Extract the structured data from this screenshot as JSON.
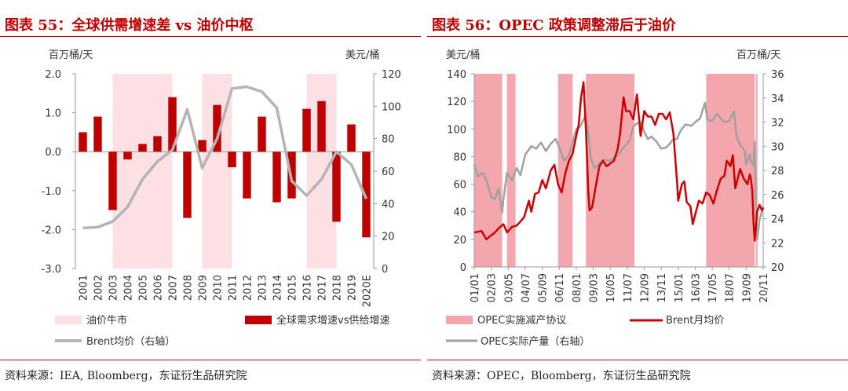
{
  "charts": {
    "c55": {
      "title": "图表 55：全球供需增速差 vs 油价中枢",
      "source": "资料来源：IEA, Bloomberg，东证衍生品研究院",
      "colors": {
        "band": "#fde0e4",
        "bar": "#c00000",
        "line": "#b4b4b4"
      }
    },
    "c56": {
      "title": "图表 56：OPEC 政策调整滞后于油价",
      "source": "资料来源：OPEC，Bloomberg，东证衍生品研究院",
      "colors": {
        "band": "#f4a6ad",
        "line_red": "#d00000",
        "line_grey": "#a0a0a0"
      }
    }
  },
  "chart_data": [
    {
      "type": "bar",
      "left_unit": "百万桶/天",
      "right_unit": "美元/桶",
      "categories": [
        "2001",
        "2002",
        "2003",
        "2004",
        "2005",
        "2006",
        "2007",
        "2008",
        "2009",
        "2010",
        "2011",
        "2012",
        "2013",
        "2014",
        "2015",
        "2016",
        "2017",
        "2018",
        "2019",
        "2020E"
      ],
      "ylim": [
        -3.0,
        2.0
      ],
      "yticks": [
        "2.0",
        "1.0",
        "0.0",
        "-1.0",
        "-2.0",
        "-3.0"
      ],
      "y2lim": [
        0,
        120
      ],
      "y2ticks": [
        "120",
        "100",
        "80",
        "60",
        "40",
        "20",
        "0"
      ],
      "series": [
        {
          "name": "全球需求增速vs供给增速",
          "axis": "left",
          "type": "bar",
          "values": [
            0.5,
            0.9,
            -1.5,
            -0.2,
            0.2,
            0.4,
            1.4,
            -1.7,
            0.3,
            1.2,
            -0.4,
            -1.2,
            0.9,
            -1.3,
            -1.2,
            1.1,
            1.3,
            -1.8,
            0.7,
            -2.2
          ]
        },
        {
          "name": "Brent均价（右轴）",
          "axis": "right",
          "type": "line",
          "values": [
            25,
            25.5,
            29,
            38,
            55,
            66,
            73,
            98,
            62,
            80,
            111,
            112,
            109,
            99,
            54,
            45,
            55,
            72,
            64,
            43
          ]
        }
      ],
      "shaded": {
        "name": "油价牛市",
        "ranges": [
          [
            "2003",
            "2007"
          ],
          [
            "2009",
            "2011"
          ],
          [
            "2016",
            "2018"
          ]
        ]
      },
      "grid": false,
      "legend": [
        {
          "label": "油价牛市",
          "kind": "band"
        },
        {
          "label": "全球需求增速vs供给增速",
          "kind": "bar"
        },
        {
          "label": "Brent均价（右轴）",
          "kind": "line"
        }
      ]
    },
    {
      "type": "line",
      "left_unit": "美元/桶",
      "right_unit": "百万桶/天",
      "x_start": "2001-01",
      "x_end": "2020-11",
      "xticks": [
        "01/01",
        "02/03",
        "03/05",
        "04/07",
        "05/09",
        "06/11",
        "08/01",
        "09/03",
        "10/05",
        "11/07",
        "12/09",
        "13/11",
        "15/01",
        "16/03",
        "17/05",
        "18/07",
        "19/09",
        "20/11"
      ],
      "ylim": [
        0,
        140
      ],
      "yticks": [
        "140",
        "120",
        "100",
        "80",
        "60",
        "40",
        "20",
        "0"
      ],
      "y2lim": [
        20,
        36
      ],
      "y2ticks": [
        "36",
        "34",
        "32",
        "30",
        "28",
        "26",
        "24",
        "22",
        "20"
      ],
      "shaded": {
        "name": "OPEC实施减产协议",
        "ranges": [
          [
            "2001-01",
            "2002-12"
          ],
          [
            "2003-04",
            "2003-11"
          ],
          [
            "2006-10",
            "2007-10"
          ],
          [
            "2008-09",
            "2012-01"
          ],
          [
            "2016-12",
            "2020-04"
          ],
          [
            "2020-05",
            "2020-06"
          ]
        ]
      },
      "series": [
        {
          "name": "Brent月均价",
          "axis": "left",
          "points": [
            [
              "2001-01",
              25
            ],
            [
              "2001-07",
              26
            ],
            [
              "2001-11",
              20
            ],
            [
              "2002-03",
              23
            ],
            [
              "2002-06",
              25
            ],
            [
              "2002-09",
              28
            ],
            [
              "2003-01",
              31
            ],
            [
              "2003-04",
              25
            ],
            [
              "2003-08",
              29
            ],
            [
              "2003-12",
              30
            ],
            [
              "2004-03",
              33
            ],
            [
              "2004-06",
              36
            ],
            [
              "2004-10",
              48
            ],
            [
              "2004-12",
              40
            ],
            [
              "2005-03",
              53
            ],
            [
              "2005-06",
              54
            ],
            [
              "2005-09",
              63
            ],
            [
              "2005-12",
              57
            ],
            [
              "2006-04",
              70
            ],
            [
              "2006-07",
              74
            ],
            [
              "2006-10",
              60
            ],
            [
              "2007-01",
              54
            ],
            [
              "2007-04",
              68
            ],
            [
              "2007-07",
              77
            ],
            [
              "2007-10",
              82
            ],
            [
              "2007-12",
              91
            ],
            [
              "2008-03",
              103
            ],
            [
              "2008-05",
              123
            ],
            [
              "2008-07",
              134
            ],
            [
              "2008-09",
              99
            ],
            [
              "2008-11",
              53
            ],
            [
              "2008-12",
              41
            ],
            [
              "2009-02",
              43
            ],
            [
              "2009-05",
              58
            ],
            [
              "2009-08",
              73
            ],
            [
              "2009-11",
              77
            ],
            [
              "2010-02",
              73
            ],
            [
              "2010-05",
              75
            ],
            [
              "2010-08",
              77
            ],
            [
              "2010-11",
              85
            ],
            [
              "2011-01",
              96
            ],
            [
              "2011-04",
              123
            ],
            [
              "2011-06",
              113
            ],
            [
              "2011-09",
              113
            ],
            [
              "2011-12",
              107
            ],
            [
              "2012-03",
              125
            ],
            [
              "2012-06",
              95
            ],
            [
              "2012-09",
              113
            ],
            [
              "2012-12",
              109
            ],
            [
              "2013-03",
              109
            ],
            [
              "2013-06",
              103
            ],
            [
              "2013-09",
              111
            ],
            [
              "2013-12",
              111
            ],
            [
              "2014-03",
              107
            ],
            [
              "2014-06",
              112
            ],
            [
              "2014-09",
              97
            ],
            [
              "2014-12",
              62
            ],
            [
              "2015-01",
              48
            ],
            [
              "2015-04",
              60
            ],
            [
              "2015-06",
              62
            ],
            [
              "2015-08",
              47
            ],
            [
              "2015-11",
              44
            ],
            [
              "2016-01",
              31
            ],
            [
              "2016-03",
              38
            ],
            [
              "2016-06",
              48
            ],
            [
              "2016-09",
              46
            ],
            [
              "2016-12",
              54
            ],
            [
              "2017-03",
              52
            ],
            [
              "2017-06",
              46
            ],
            [
              "2017-09",
              56
            ],
            [
              "2017-12",
              64
            ],
            [
              "2018-03",
              66
            ],
            [
              "2018-05",
              77
            ],
            [
              "2018-08",
              73
            ],
            [
              "2018-10",
              81
            ],
            [
              "2018-12",
              57
            ],
            [
              "2019-02",
              64
            ],
            [
              "2019-04",
              71
            ],
            [
              "2019-07",
              64
            ],
            [
              "2019-10",
              60
            ],
            [
              "2019-12",
              67
            ],
            [
              "2020-01",
              63
            ],
            [
              "2020-02",
              55
            ],
            [
              "2020-03",
              33
            ],
            [
              "2020-04",
              19
            ],
            [
              "2020-05",
              29
            ],
            [
              "2020-06",
              40
            ],
            [
              "2020-08",
              45
            ],
            [
              "2020-10",
              41
            ],
            [
              "2020-11",
              43
            ]
          ]
        },
        {
          "name": "OPEC实际产量（右轴）",
          "axis": "right",
          "points": [
            [
              "2001-01",
              28.5
            ],
            [
              "2001-04",
              27.5
            ],
            [
              "2001-08",
              27.8
            ],
            [
              "2001-11",
              27.2
            ],
            [
              "2002-03",
              25.8
            ],
            [
              "2002-06",
              25.6
            ],
            [
              "2002-09",
              26.5
            ],
            [
              "2002-12",
              24.5
            ],
            [
              "2003-01",
              25.6
            ],
            [
              "2003-04",
              27.8
            ],
            [
              "2003-08",
              27.2
            ],
            [
              "2003-12",
              28.2
            ],
            [
              "2004-03",
              27.6
            ],
            [
              "2004-07",
              29.3
            ],
            [
              "2004-12",
              30.0
            ],
            [
              "2005-04",
              29.8
            ],
            [
              "2005-08",
              30.3
            ],
            [
              "2005-12",
              29.6
            ],
            [
              "2006-04",
              30.2
            ],
            [
              "2006-08",
              30.6
            ],
            [
              "2006-11",
              29.9
            ],
            [
              "2007-03",
              28.8
            ],
            [
              "2007-07",
              29.3
            ],
            [
              "2007-10",
              30.3
            ],
            [
              "2008-01",
              31.4
            ],
            [
              "2008-04",
              31.6
            ],
            [
              "2008-08",
              32.4
            ],
            [
              "2008-10",
              31.8
            ],
            [
              "2009-01",
              29.0
            ],
            [
              "2009-04",
              28.2
            ],
            [
              "2009-08",
              28.6
            ],
            [
              "2009-12",
              28.9
            ],
            [
              "2010-04",
              28.8
            ],
            [
              "2010-08",
              29.0
            ],
            [
              "2010-12",
              29.3
            ],
            [
              "2011-03",
              29.8
            ],
            [
              "2011-06",
              30.1
            ],
            [
              "2011-09",
              30.5
            ],
            [
              "2011-12",
              31.6
            ],
            [
              "2012-03",
              31.9
            ],
            [
              "2012-06",
              32.0
            ],
            [
              "2012-09",
              31.2
            ],
            [
              "2012-12",
              30.6
            ],
            [
              "2013-03",
              30.8
            ],
            [
              "2013-07",
              30.4
            ],
            [
              "2013-11",
              29.8
            ],
            [
              "2014-03",
              29.9
            ],
            [
              "2014-06",
              30.2
            ],
            [
              "2014-09",
              30.6
            ],
            [
              "2014-12",
              30.6
            ],
            [
              "2015-03",
              31.3
            ],
            [
              "2015-07",
              31.8
            ],
            [
              "2015-12",
              31.7
            ],
            [
              "2016-03",
              32.0
            ],
            [
              "2016-07",
              32.3
            ],
            [
              "2016-11",
              33.6
            ],
            [
              "2017-01",
              32.2
            ],
            [
              "2017-05",
              32.1
            ],
            [
              "2017-09",
              32.7
            ],
            [
              "2017-12",
              32.3
            ],
            [
              "2018-03",
              32.0
            ],
            [
              "2018-07",
              32.1
            ],
            [
              "2018-11",
              32.9
            ],
            [
              "2019-01",
              30.8
            ],
            [
              "2019-04",
              30.1
            ],
            [
              "2019-08",
              29.6
            ],
            [
              "2019-09",
              28.5
            ],
            [
              "2019-12",
              29.3
            ],
            [
              "2020-01",
              28.7
            ],
            [
              "2020-03",
              28.4
            ],
            [
              "2020-04",
              30.4
            ],
            [
              "2020-05",
              24.4
            ],
            [
              "2020-06",
              22.3
            ],
            [
              "2020-08",
              23.9
            ],
            [
              "2020-11",
              25.0
            ]
          ]
        }
      ],
      "grid": false,
      "legend": [
        {
          "label": "OPEC实施减产协议",
          "kind": "band"
        },
        {
          "label": "Brent月均价",
          "kind": "line"
        },
        {
          "label": "OPEC实际产量（右轴）",
          "kind": "line"
        }
      ]
    }
  ]
}
